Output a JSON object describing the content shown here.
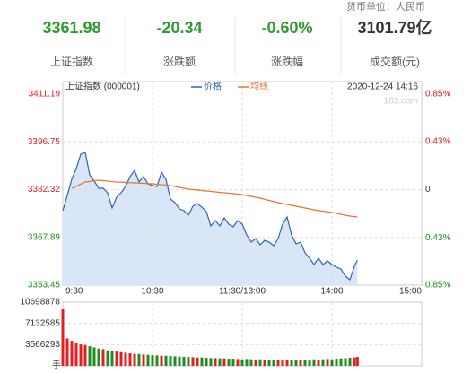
{
  "header": {
    "currency": "货币单位：人民币",
    "stats": [
      {
        "value": "3361.98",
        "label": "上证指数",
        "color": "#2e9b2e"
      },
      {
        "value": "-20.34",
        "label": "涨跌额",
        "color": "#2e9b2e"
      },
      {
        "value": "-0.60%",
        "label": "涨跌幅",
        "color": "#2e9b2e"
      },
      {
        "value": "3101.79亿",
        "label": "成交额(元)",
        "color": "#333333"
      }
    ]
  },
  "chart_data": [
    {
      "type": "line",
      "title": "上证指数 (000001)",
      "date": "2020-12-24 14:16",
      "watermark": "163.com",
      "series": [
        {
          "name": "价格",
          "color": "#2f62b0",
          "area_color": "#d8e6f8",
          "x": [
            0,
            3,
            6,
            9,
            12,
            15,
            18,
            21,
            24,
            27,
            30,
            33,
            36,
            39,
            42,
            45,
            48,
            51,
            54,
            57,
            60,
            63,
            66,
            69,
            72,
            75,
            78,
            81,
            84,
            87,
            90,
            93,
            96,
            99,
            102,
            105,
            108,
            111,
            114,
            117,
            120,
            123,
            126,
            129,
            132,
            135,
            138,
            141,
            144,
            147,
            150,
            153,
            156,
            159,
            162,
            165,
            168,
            171,
            174,
            177,
            180,
            183,
            186,
            189,
            192,
            195,
            197
          ],
          "values": [
            3375.95,
            3380.56,
            3385.44,
            3388.69,
            3393.03,
            3393.57,
            3386.79,
            3384.89,
            3382.72,
            3382.72,
            3381.37,
            3376.76,
            3380.01,
            3381.37,
            3383.27,
            3386.25,
            3388.15,
            3384.62,
            3386.25,
            3384.08,
            3383.54,
            3383.27,
            3387.6,
            3385.44,
            3379.47,
            3378.39,
            3376.49,
            3375.95,
            3374.59,
            3377.3,
            3378.12,
            3377.03,
            3375.68,
            3371.34,
            3372.96,
            3371.34,
            3373.78,
            3371.88,
            3371.07,
            3372.96,
            3371.88,
            3368.63,
            3366.46,
            3367.54,
            3365.65,
            3367.0,
            3366.46,
            3365.37,
            3367.54,
            3371.88,
            3374.05,
            3368.63,
            3365.92,
            3366.46,
            3363.21,
            3361.58,
            3359.68,
            3361.58,
            3359.68,
            3360.77,
            3359.68,
            3358.87,
            3358.33,
            3356.16,
            3355.07,
            3359.14,
            3361.0
          ]
        },
        {
          "name": "均线",
          "color": "#e8732e",
          "x": [
            6,
            15,
            24,
            36,
            48,
            60,
            72,
            84,
            96,
            108,
            120,
            132,
            144,
            156,
            168,
            180,
            192,
            197
          ],
          "values": [
            3382.72,
            3384.62,
            3385.16,
            3384.62,
            3384.35,
            3384.08,
            3383.54,
            3382.45,
            3381.91,
            3381.37,
            3380.83,
            3379.74,
            3378.39,
            3377.3,
            3376.22,
            3375.4,
            3374.32,
            3374.05
          ]
        }
      ],
      "xlim": [
        0,
        240
      ],
      "xticks": [
        {
          "value": 0,
          "label": "9:30"
        },
        {
          "value": 60,
          "label": "10:30"
        },
        {
          "value": 120,
          "label": "11:30/13:00"
        },
        {
          "value": 180,
          "label": "14:00"
        },
        {
          "value": 240,
          "label": "15:00"
        }
      ],
      "ylim": [
        3353.45,
        3411.19
      ],
      "yticks": [
        3411.19,
        3396.75,
        3382.32,
        3367.89,
        3353.45
      ],
      "y2lim": [
        -0.85,
        0.85
      ],
      "y2ticks": [
        {
          "value": 0.85,
          "label": "0.85%"
        },
        {
          "value": 0.43,
          "label": "0.43%"
        },
        0,
        {
          "value": -0.43,
          "label": "0.43%"
        },
        {
          "value": -0.85,
          "label": "0.85%"
        }
      ],
      "grid": true,
      "up_color": "#e02020",
      "down_color": "#1e8c1e"
    },
    {
      "type": "bar",
      "unit": "手",
      "x": [
        0,
        3,
        6,
        9,
        12,
        15,
        18,
        21,
        24,
        27,
        30,
        33,
        36,
        39,
        42,
        45,
        48,
        51,
        54,
        57,
        60,
        63,
        66,
        69,
        72,
        75,
        78,
        81,
        84,
        87,
        90,
        93,
        96,
        99,
        102,
        105,
        108,
        111,
        114,
        117,
        120,
        123,
        126,
        129,
        132,
        135,
        138,
        141,
        144,
        147,
        150,
        153,
        156,
        159,
        162,
        165,
        168,
        171,
        174,
        177,
        180,
        183,
        186,
        189,
        192,
        195,
        197
      ],
      "values": [
        9500000,
        4600000,
        4200000,
        3900000,
        3600000,
        3500000,
        3300000,
        3100000,
        2900000,
        2800000,
        2600000,
        2500000,
        2400000,
        2300000,
        2200000,
        2100000,
        2000000,
        2000000,
        1900000,
        1850000,
        1800000,
        1750000,
        1700000,
        1700000,
        1650000,
        1600000,
        1550000,
        1500000,
        1500000,
        1450000,
        1400000,
        1400000,
        1350000,
        1300000,
        1300000,
        1250000,
        1250000,
        1200000,
        1200000,
        1150000,
        1100000,
        1150000,
        1100000,
        1050000,
        1100000,
        1050000,
        1000000,
        1050000,
        1000000,
        1000000,
        950000,
        1000000,
        950000,
        1000000,
        1050000,
        1000000,
        1100000,
        1050000,
        1100000,
        1150000,
        1100000,
        1200000,
        1250000,
        1300000,
        1350000,
        1400000,
        1500000
      ],
      "xlim": [
        0,
        240
      ],
      "ylim": [
        0,
        10698878
      ],
      "yticks": [
        3566293,
        7132585,
        10698878
      ],
      "grid": true,
      "up_color": "#e02020",
      "down_color": "#1e8c1e"
    }
  ]
}
